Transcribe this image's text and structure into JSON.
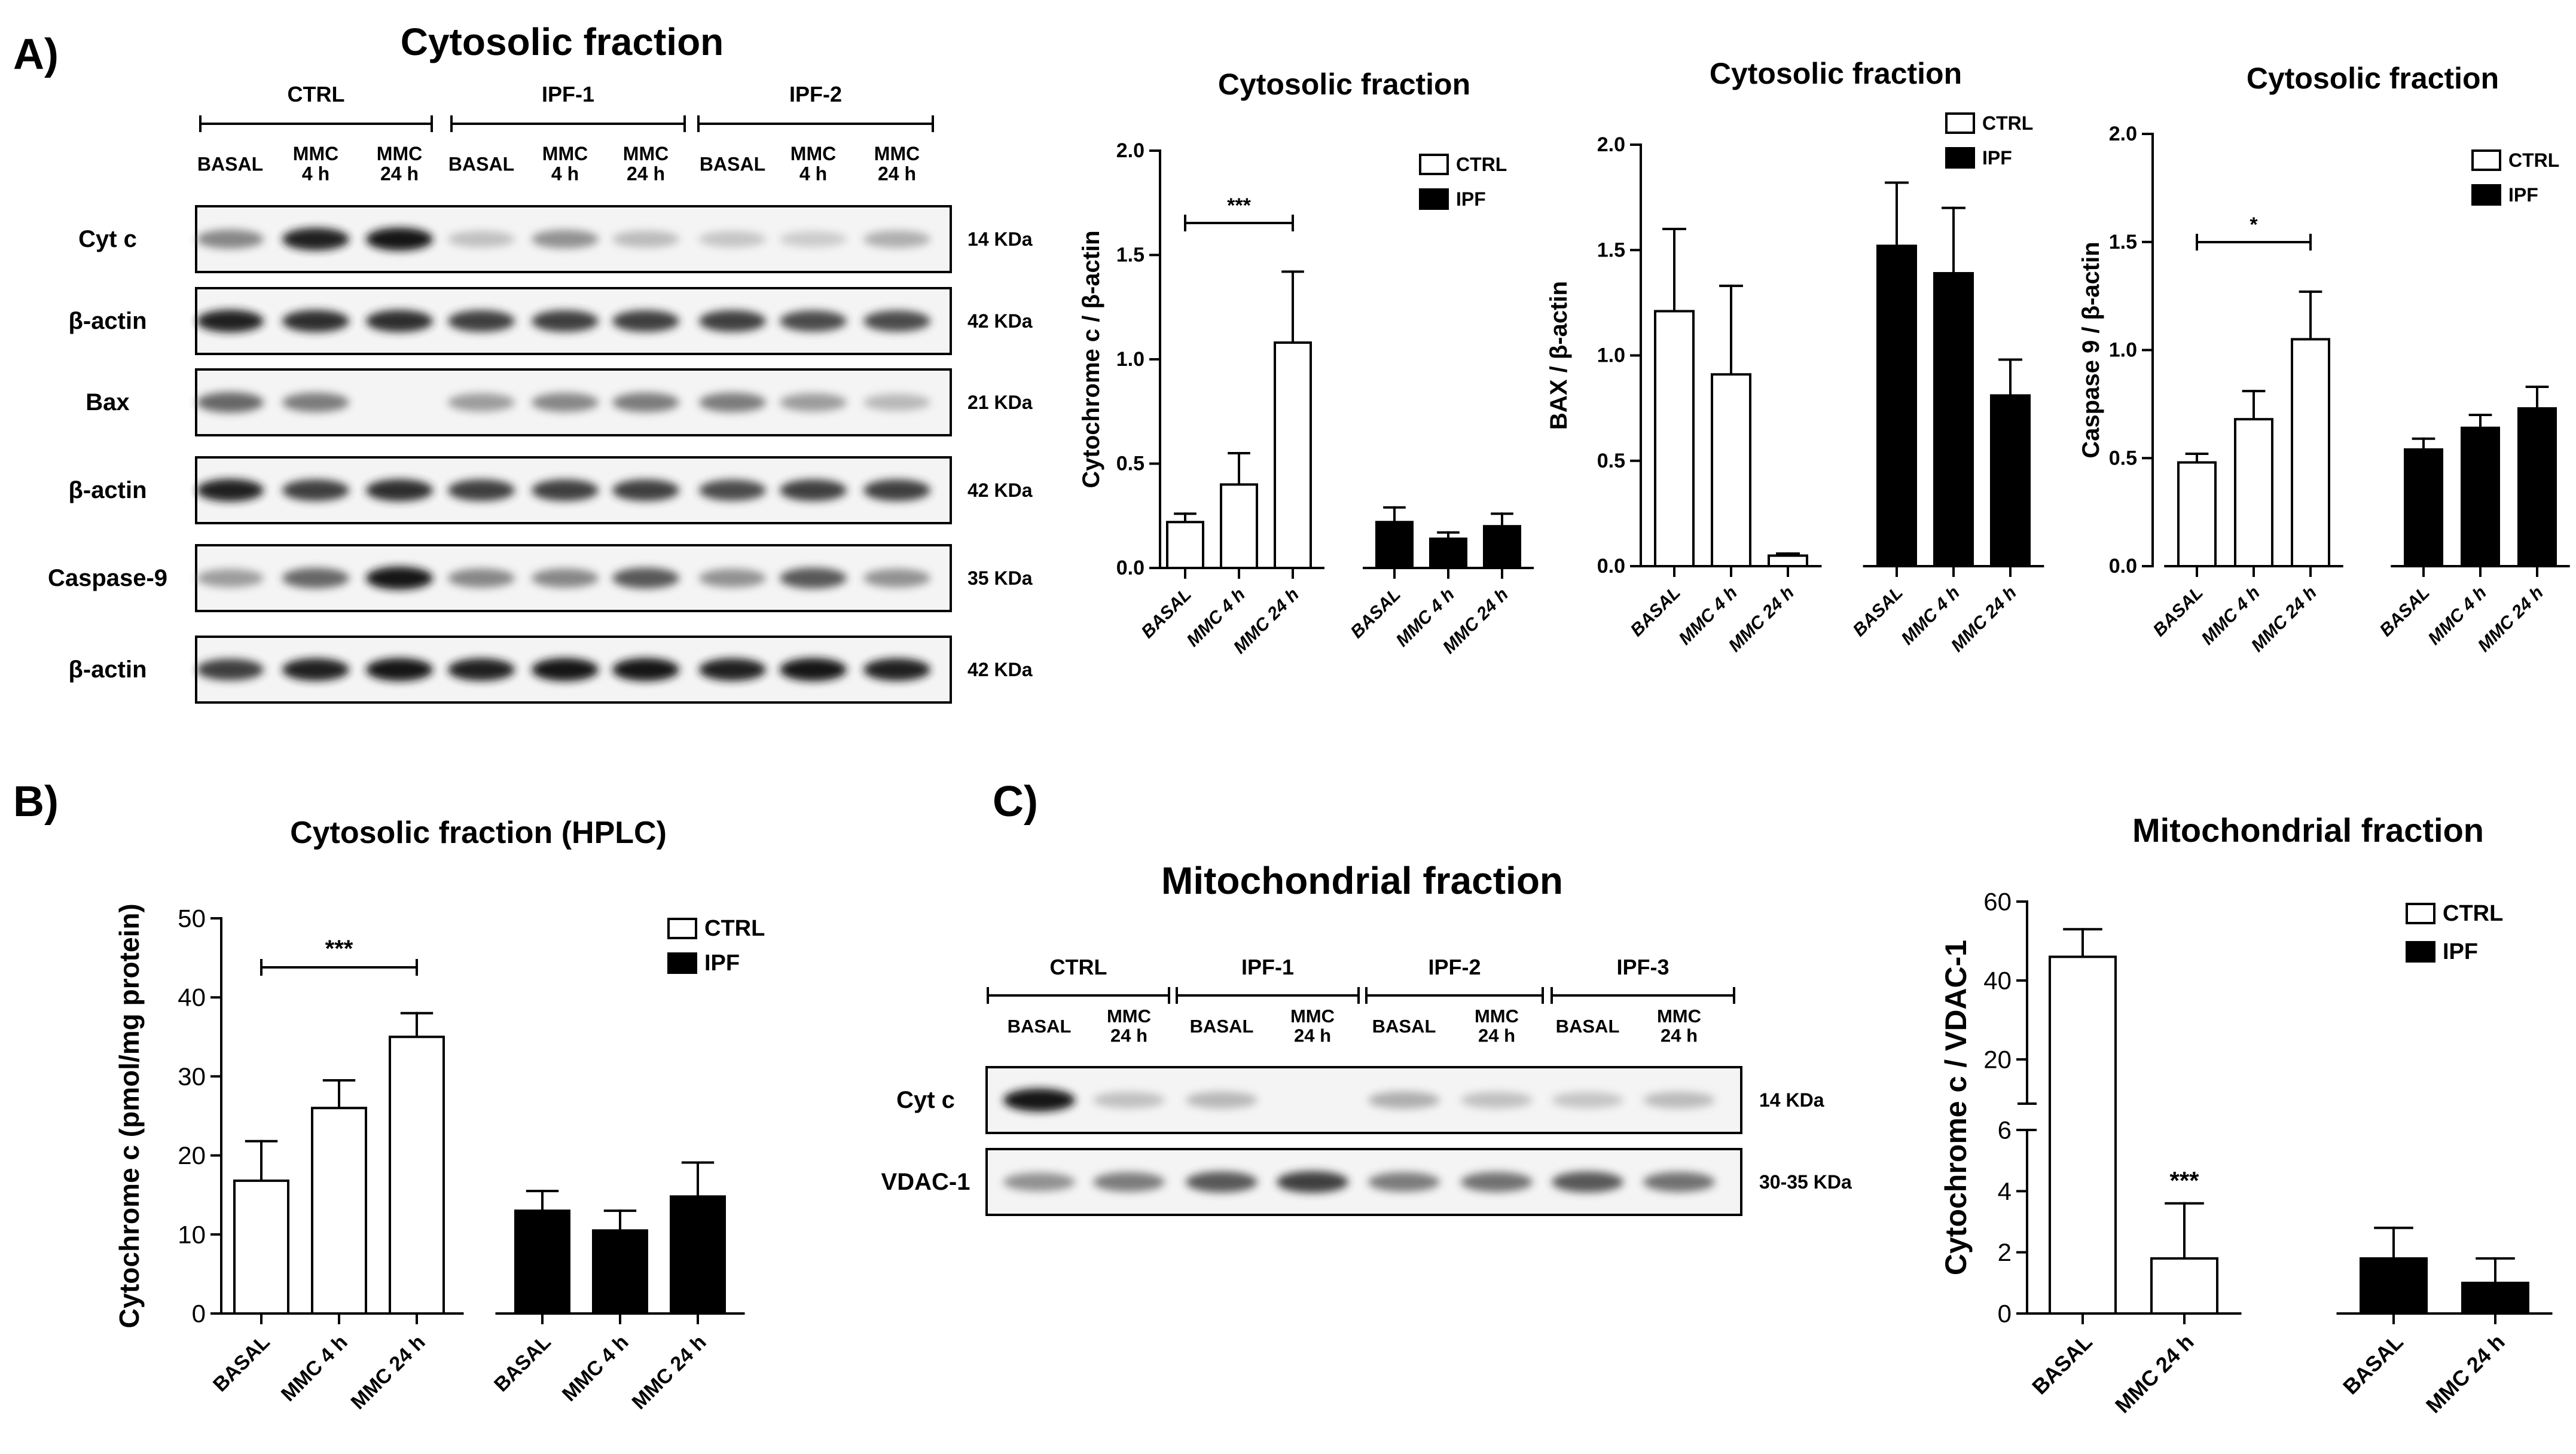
{
  "panels": {
    "a": {
      "letter": "A)",
      "blot": {
        "title": "Cytosolic fraction",
        "groups": [
          "CTRL",
          "IPF-1",
          "IPF-2"
        ],
        "lanes": [
          [
            "BASAL"
          ],
          [
            "MMC",
            "4 h"
          ],
          [
            "MMC",
            "24 h"
          ],
          [
            "BASAL"
          ],
          [
            "MMC",
            "4 h"
          ],
          [
            "MMC",
            "24 h"
          ],
          [
            "BASAL"
          ],
          [
            "MMC",
            "4 h"
          ],
          [
            "MMC",
            "24 h"
          ]
        ],
        "strips": [
          {
            "label": "Cyt c",
            "size": "14 KDa",
            "intensity": [
              0.55,
              0.95,
              1.0,
              0.25,
              0.5,
              0.28,
              0.22,
              0.18,
              0.35
            ]
          },
          {
            "label": "β-actin",
            "size": "42 KDa",
            "intensity": [
              0.95,
              0.9,
              0.9,
              0.85,
              0.85,
              0.85,
              0.85,
              0.8,
              0.8
            ]
          },
          {
            "label": "Bax",
            "size": "21 KDa",
            "intensity": [
              0.7,
              0.6,
              0.0,
              0.45,
              0.55,
              0.6,
              0.6,
              0.45,
              0.3
            ]
          },
          {
            "label": "β-actin",
            "size": "42 KDa",
            "intensity": [
              0.95,
              0.85,
              0.9,
              0.85,
              0.85,
              0.85,
              0.8,
              0.85,
              0.85
            ]
          },
          {
            "label": "Caspase-9",
            "size": "35 KDa",
            "intensity": [
              0.45,
              0.7,
              1.0,
              0.55,
              0.55,
              0.75,
              0.5,
              0.75,
              0.5
            ]
          },
          {
            "label": "β-actin",
            "size": "42 KDa",
            "intensity": [
              0.85,
              0.95,
              1.0,
              0.95,
              1.0,
              1.0,
              0.95,
              1.0,
              0.95
            ]
          }
        ]
      }
    },
    "b": {
      "letter": "B)"
    },
    "c": {
      "letter": "C)",
      "blot": {
        "title": "Mitochondrial fraction",
        "groups": [
          "CTRL",
          "IPF-1",
          "IPF-2",
          "IPF-3"
        ],
        "lanes": [
          [
            "BASAL"
          ],
          [
            "MMC",
            "24 h"
          ],
          [
            "BASAL"
          ],
          [
            "MMC",
            "24 h"
          ],
          [
            "BASAL"
          ],
          [
            "MMC",
            "24 h"
          ],
          [
            "BASAL"
          ],
          [
            "MMC",
            "24 h"
          ]
        ],
        "strips": [
          {
            "label": "Cyt  c",
            "size": "14 KDa",
            "intensity": [
              1.0,
              0.25,
              0.3,
              0.0,
              0.35,
              0.25,
              0.22,
              0.28
            ]
          },
          {
            "label": "VDAC-1",
            "size": "30-35 KDa",
            "intensity": [
              0.5,
              0.6,
              0.75,
              0.85,
              0.6,
              0.65,
              0.75,
              0.65
            ]
          }
        ]
      }
    }
  },
  "chart_data": [
    {
      "id": "a1",
      "type": "bar",
      "title": "Cytosolic fraction",
      "ylabel": "Cytochrome c / β-actin",
      "xlabel": "",
      "ylim": [
        0,
        2.0
      ],
      "yticks": [
        "0.0",
        "0.5",
        "1.0",
        "1.5",
        "2.0"
      ],
      "groups": [
        {
          "name": "CTRL",
          "categories": [
            "BASAL",
            "MMC 4 h",
            "MMC 24 h"
          ],
          "values": [
            0.22,
            0.4,
            1.08
          ],
          "errors": [
            0.04,
            0.15,
            0.34
          ]
        },
        {
          "name": "IPF",
          "categories": [
            "BASAL",
            "MMC 4 h",
            "MMC 24 h"
          ],
          "values": [
            0.22,
            0.14,
            0.2
          ],
          "errors": [
            0.07,
            0.03,
            0.06
          ]
        }
      ],
      "legend": [
        "CTRL",
        "IPF"
      ],
      "annotation": {
        "text": "***",
        "from": 0,
        "to": 2
      }
    },
    {
      "id": "a2",
      "type": "bar",
      "title": "Cytosolic fraction",
      "ylabel": "BAX / β-actin",
      "xlabel": "",
      "ylim": [
        0,
        2.0
      ],
      "yticks": [
        "0.0",
        "0.5",
        "1.0",
        "1.5",
        "2.0"
      ],
      "groups": [
        {
          "name": "CTRL",
          "categories": [
            "BASAL",
            "MMC 4 h",
            "MMC 24 h"
          ],
          "values": [
            1.21,
            0.91,
            0.05
          ],
          "errors": [
            0.39,
            0.42,
            0.01
          ]
        },
        {
          "name": "IPF",
          "categories": [
            "BASAL",
            "MMC 4 h",
            "MMC 24 h"
          ],
          "values": [
            1.52,
            1.39,
            0.81
          ],
          "errors": [
            0.3,
            0.31,
            0.17
          ]
        }
      ],
      "legend": [
        "CTRL",
        "IPF"
      ]
    },
    {
      "id": "a3",
      "type": "bar",
      "title": "Cytosolic fraction",
      "ylabel": "Caspase 9 / β-actin",
      "xlabel": "",
      "ylim": [
        0,
        2.0
      ],
      "yticks": [
        "0.0",
        "0.5",
        "1.0",
        "1.5",
        "2.0"
      ],
      "groups": [
        {
          "name": "CTRL",
          "categories": [
            "BASAL",
            "MMC 4 h",
            "MMC 24 h"
          ],
          "values": [
            0.48,
            0.68,
            1.05
          ],
          "errors": [
            0.04,
            0.13,
            0.22
          ]
        },
        {
          "name": "IPF",
          "categories": [
            "BASAL",
            "MMC 4 h",
            "MMC 24 h"
          ],
          "values": [
            0.54,
            0.64,
            0.73
          ],
          "errors": [
            0.05,
            0.06,
            0.1
          ]
        }
      ],
      "legend": [
        "CTRL",
        "IPF"
      ],
      "annotation": {
        "text": "*",
        "from": 0,
        "to": 2
      }
    },
    {
      "id": "b",
      "type": "bar",
      "title": "Cytosolic fraction (HPLC)",
      "ylabel": "Cytochrome c (pmol/mg protein)",
      "xlabel": "",
      "ylim": [
        0,
        50
      ],
      "yticks": [
        "0",
        "10",
        "20",
        "30",
        "40",
        "50"
      ],
      "groups": [
        {
          "name": "CTRL",
          "categories": [
            "BASAL",
            "MMC 4 h",
            "MMC 24 h"
          ],
          "values": [
            16.8,
            26.0,
            35.0
          ],
          "errors": [
            5.0,
            3.5,
            3.0
          ]
        },
        {
          "name": "IPF",
          "categories": [
            "BASAL",
            "MMC 4 h",
            "MMC 24 h"
          ],
          "values": [
            13.0,
            10.5,
            14.8
          ],
          "errors": [
            2.5,
            2.5,
            4.3
          ]
        }
      ],
      "legend": [
        "CTRL",
        "IPF"
      ],
      "annotation": {
        "text": "***",
        "from": 0,
        "to": 2
      }
    },
    {
      "id": "c",
      "type": "bar",
      "title": "Mitochondrial fraction",
      "ylabel": "Cytochrome c / VDAC-1",
      "xlabel": "",
      "ylim": [
        0,
        60
      ],
      "axis_break": [
        6,
        10
      ],
      "yticks": [
        "0",
        "2",
        "4",
        "6",
        "20",
        "40",
        "60"
      ],
      "groups": [
        {
          "name": "CTRL",
          "categories": [
            "BASAL",
            "MMC 24 h"
          ],
          "values": [
            46.0,
            1.8
          ],
          "errors": [
            7.0,
            1.8
          ]
        },
        {
          "name": "IPF",
          "categories": [
            "BASAL",
            "MMC 24 h"
          ],
          "values": [
            1.8,
            1.0
          ],
          "errors": [
            1.0,
            0.8
          ]
        }
      ],
      "legend": [
        "CTRL",
        "IPF"
      ],
      "star": {
        "text": "***",
        "bar": 1
      }
    }
  ],
  "colors": {
    "ctrl_fill": "#ffffff",
    "ipf_fill": "#000000",
    "axis": "#000000",
    "blot_bg": "#f4f4f4"
  }
}
